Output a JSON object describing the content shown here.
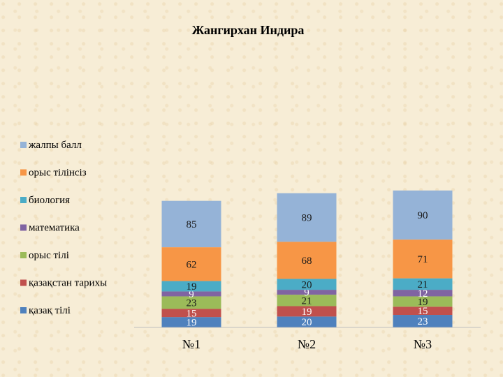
{
  "chart_data": {
    "type": "bar",
    "stacked": true,
    "title": "Жангирхан Индира",
    "categories": [
      "№1",
      "№2",
      "№3"
    ],
    "series": [
      {
        "name": "қазақ тілі",
        "values": [
          19,
          20,
          23
        ],
        "color": "#4f81bd"
      },
      {
        "name": "қазақстан тарихы",
        "values": [
          15,
          19,
          15
        ],
        "color": "#c0504d"
      },
      {
        "name": "орыс тілі",
        "values": [
          23,
          21,
          19
        ],
        "color": "#9bbb59"
      },
      {
        "name": "математика",
        "values": [
          9,
          9,
          12
        ],
        "color": "#8064a2"
      },
      {
        "name": "биология",
        "values": [
          19,
          20,
          21
        ],
        "color": "#4bacc6"
      },
      {
        "name": "орыс тілінсіз",
        "values": [
          62,
          68,
          71
        ],
        "color": "#f79646"
      },
      {
        "name": "жалпы балл",
        "values": [
          85,
          89,
          90
        ],
        "color": "#95b3d7"
      }
    ],
    "legend": "left",
    "grid": false
  }
}
